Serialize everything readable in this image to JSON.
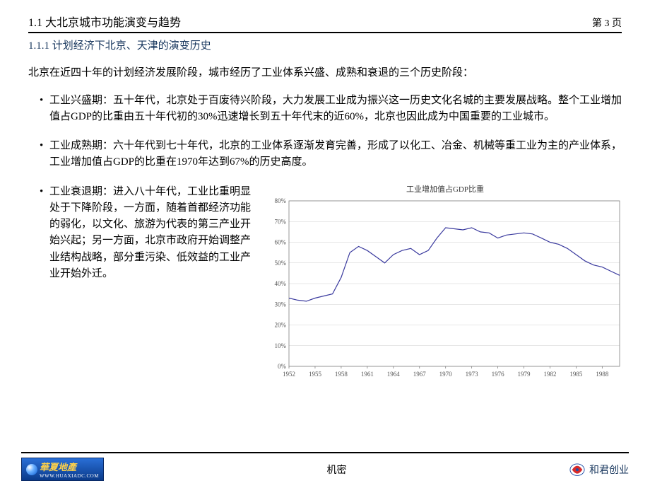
{
  "header": {
    "section_title": "1.1  大北京城市功能演变与趋势",
    "page_label": "第  3  页"
  },
  "subsection_title": "1.1.1  计划经济下北京、天津的演变历史",
  "intro": "北京在近四十年的计划经济发展阶段，城市经历了工业体系兴盛、成熟和衰退的三个历史阶段：",
  "bullets": {
    "b1": "工业兴盛期：五十年代，北京处于百废待兴阶段，大力发展工业成为振兴这一历史文化名城的主要发展战略。整个工业增加值占GDP的比重由五十年代初的30%迅速增长到五十年代末的近60%，北京也因此成为中国重要的工业城市。",
    "b2": "工业成熟期：六十年代到七十年代，北京的工业体系逐渐发育完善，形成了以化工、冶金、机械等重工业为主的产业体系，工业增加值占GDP的比重在1970年达到67%的历史高度。",
    "b3": "工业衰退期：进入八十年代，工业比重明显处于下降阶段，一方面，随着首都经济功能的弱化，以文化、旅游为代表的第三产业开始兴起；另一方面，北京市政府开始调整产业结构战略，部分重污染、低效益的工业产业开始外迁。"
  },
  "chart": {
    "type": "line",
    "title": "工业增加值占GDP比重",
    "x_ticks": [
      "1952",
      "1955",
      "1958",
      "1961",
      "1964",
      "1967",
      "1970",
      "1973",
      "1976",
      "1979",
      "1982",
      "1985",
      "1988"
    ],
    "x_year_start": 1952,
    "x_year_end": 1990,
    "y_ticks_percent": [
      0,
      10,
      20,
      30,
      40,
      50,
      60,
      70,
      80
    ],
    "ylim": [
      0,
      80
    ],
    "series_color": "#3a3a9e",
    "grid_color": "#cfcfcf",
    "axis_color": "#808080",
    "tick_font_size": 9,
    "title_font_size": 11,
    "background_color": "#ffffff",
    "line_width": 1.2,
    "values": [
      [
        1952,
        33
      ],
      [
        1953,
        32
      ],
      [
        1954,
        31.5
      ],
      [
        1955,
        33
      ],
      [
        1956,
        34
      ],
      [
        1957,
        35
      ],
      [
        1958,
        43
      ],
      [
        1959,
        55
      ],
      [
        1960,
        58
      ],
      [
        1961,
        56
      ],
      [
        1962,
        53
      ],
      [
        1963,
        50
      ],
      [
        1964,
        54
      ],
      [
        1965,
        56
      ],
      [
        1966,
        57
      ],
      [
        1967,
        54
      ],
      [
        1968,
        56
      ],
      [
        1969,
        62
      ],
      [
        1970,
        67
      ],
      [
        1971,
        66.5
      ],
      [
        1972,
        66
      ],
      [
        1973,
        67
      ],
      [
        1974,
        65
      ],
      [
        1975,
        64.5
      ],
      [
        1976,
        62
      ],
      [
        1977,
        63.5
      ],
      [
        1978,
        64
      ],
      [
        1979,
        64.5
      ],
      [
        1980,
        64
      ],
      [
        1981,
        62
      ],
      [
        1982,
        60
      ],
      [
        1983,
        59
      ],
      [
        1984,
        57
      ],
      [
        1985,
        54
      ],
      [
        1986,
        51
      ],
      [
        1987,
        49
      ],
      [
        1988,
        48
      ],
      [
        1989,
        46
      ],
      [
        1990,
        44
      ]
    ]
  },
  "footer": {
    "confidential": "机密",
    "left_logo_text": "華夏地產",
    "left_logo_sub": "WWW.HUAXIADC.COM",
    "right_logo_text": "和君创业"
  },
  "colors": {
    "heading_blue": "#17365d"
  }
}
